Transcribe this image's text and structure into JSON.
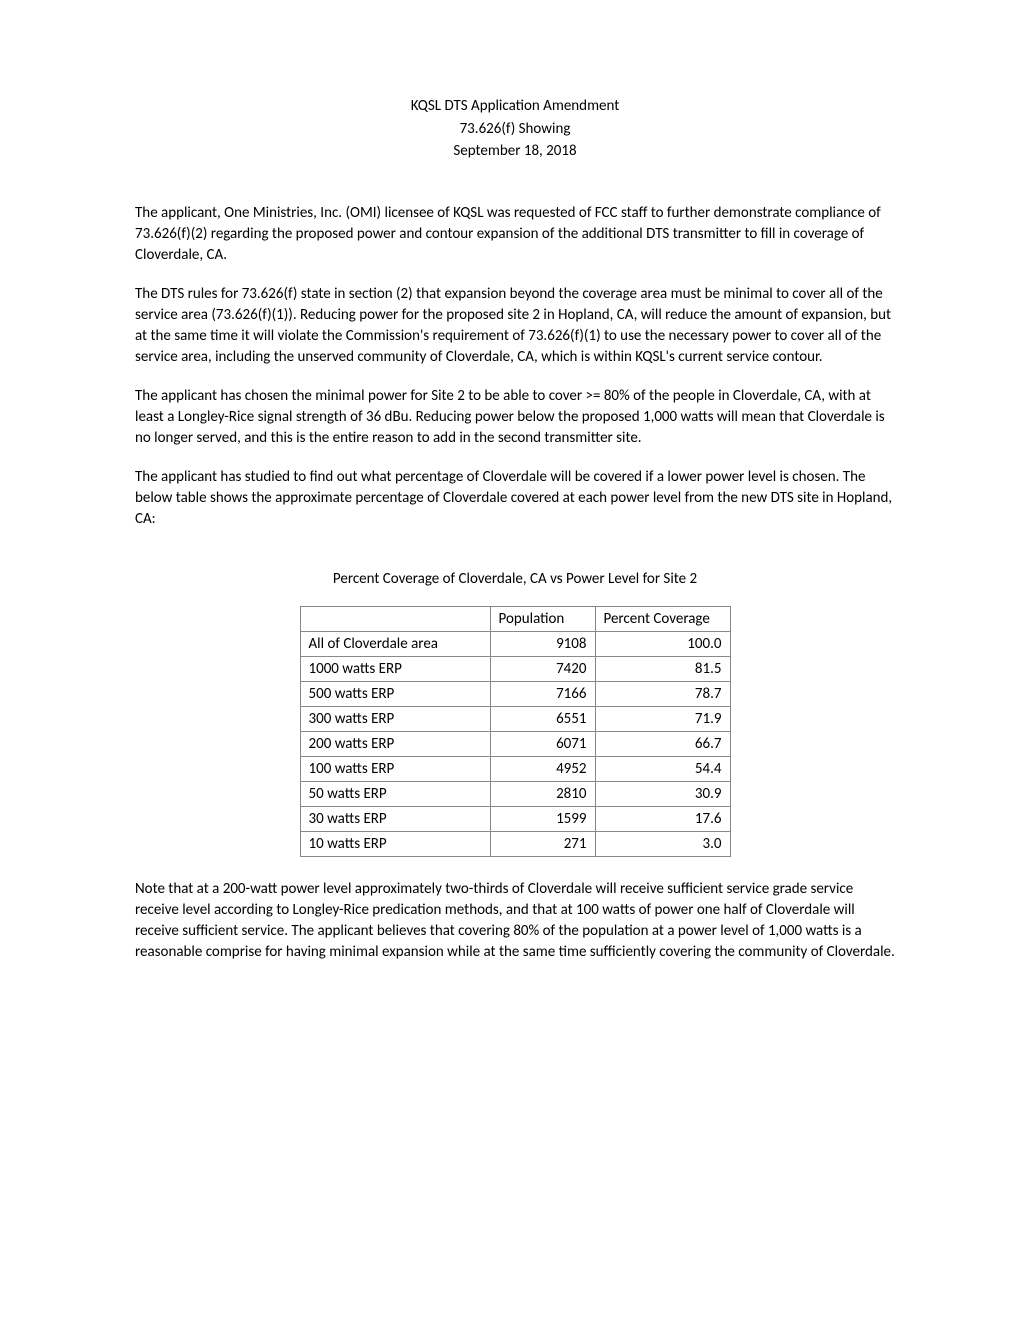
{
  "header": {
    "line1": "KQSL DTS Application Amendment",
    "line2": "73.626(f) Showing",
    "line3": "September 18, 2018"
  },
  "paragraphs": {
    "p1": "The applicant, One Ministries, Inc. (OMI) licensee of KQSL was requested of FCC staff to further demonstrate compliance of 73.626(f)(2) regarding the proposed power and contour expansion of the additional DTS transmitter to fill in coverage of Cloverdale, CA.",
    "p2": "The DTS rules for 73.626(f) state in section (2) that expansion beyond the coverage area must be minimal to cover all of the service area (73.626(f)(1)).  Reducing power for the proposed site 2 in Hopland, CA, will reduce the amount of expansion, but at the same time it will violate the Commission's requirement of 73.626(f)(1) to use the necessary power to cover all of the service area, including the unserved community of Cloverdale, CA, which is within KQSL's current service contour.",
    "p3": "The applicant has chosen the minimal power for Site 2 to be able to cover >= 80% of the people in Cloverdale, CA, with at least a Longley-Rice signal strength of 36 dBu.  Reducing power below the proposed 1,000 watts will mean that Cloverdale is no longer served, and this is the entire reason to add in the second transmitter site.",
    "p4": "The applicant has studied to find out what percentage of Cloverdale will be covered if a lower power level is chosen.  The below table shows the approximate percentage of Cloverdale covered at each power level from the new DTS site in Hopland, CA:",
    "p5": "Note that at a 200-watt power level approximately two-thirds of Cloverdale will receive sufficient service grade service receive level according to Longley-Rice predication methods, and that at 100 watts of power one half of Cloverdale will receive sufficient service.  The applicant believes that covering 80% of the population at a power level of 1,000 watts is a reasonable comprise for having minimal expansion while at the same time sufficiently covering the community of Cloverdale."
  },
  "table": {
    "title": "Percent Coverage of Cloverdale, CA vs Power Level for Site 2",
    "headers": {
      "col1": "",
      "col2": "Population",
      "col3": "Percent Coverage"
    },
    "rows": [
      {
        "label": "All of Cloverdale area",
        "population": "9108",
        "coverage": "100.0"
      },
      {
        "label": "1000 watts ERP",
        "population": "7420",
        "coverage": "81.5"
      },
      {
        "label": "500 watts ERP",
        "population": "7166",
        "coverage": "78.7"
      },
      {
        "label": "300 watts ERP",
        "population": "6551",
        "coverage": "71.9"
      },
      {
        "label": "200 watts ERP",
        "population": "6071",
        "coverage": "66.7"
      },
      {
        "label": "100 watts ERP",
        "population": "4952",
        "coverage": "54.4"
      },
      {
        "label": "50 watts ERP",
        "population": "2810",
        "coverage": "30.9"
      },
      {
        "label": "30 watts ERP",
        "population": "1599",
        "coverage": "17.6"
      },
      {
        "label": "10 watts ERP",
        "population": "271",
        "coverage": "3.0"
      }
    ]
  }
}
